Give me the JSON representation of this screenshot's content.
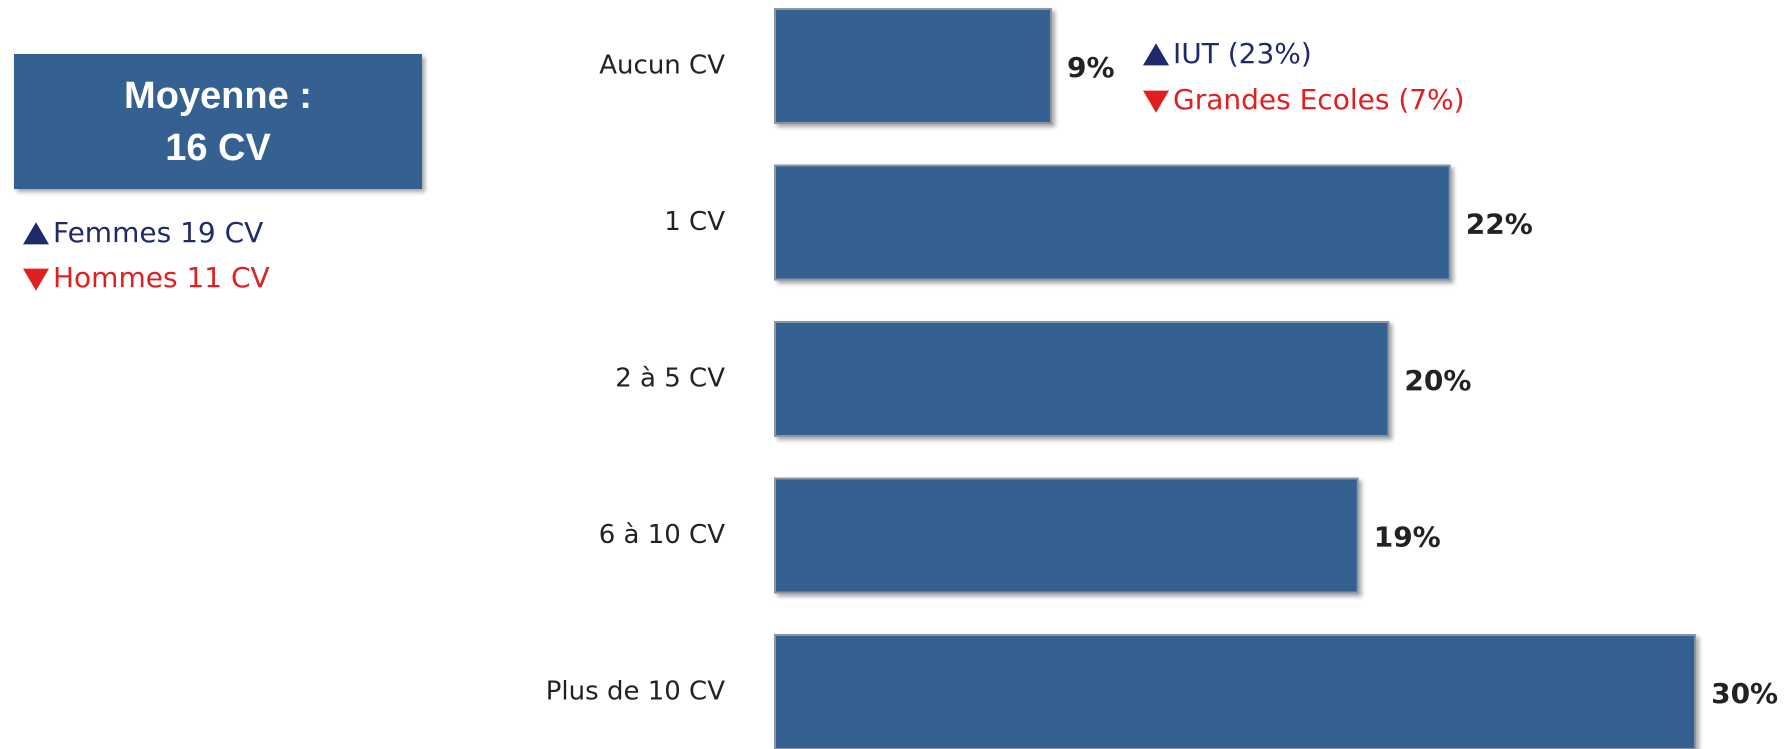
{
  "chart_data": {
    "type": "bar",
    "orientation": "horizontal",
    "categories": [
      "Aucun CV",
      "1 CV",
      "2 à 5 CV",
      "6 à 10 CV",
      "Plus de 10 CV"
    ],
    "values": [
      9,
      22,
      20,
      19,
      30
    ],
    "value_labels": [
      "9%",
      "22%",
      "20%",
      "19%",
      "30%"
    ],
    "color": "#366092",
    "box": {
      "lines": [
        "Moyenne :",
        "16 CV"
      ],
      "color": "#366092"
    },
    "notes": [
      {
        "text": "Femmes 19 CV",
        "direction": "up",
        "color": "#1f2a6b"
      },
      {
        "text": "Hommes 11 CV",
        "direction": "down",
        "color": "#e02020"
      }
    ],
    "bar_notes": [
      {
        "text": "IUT (23%)",
        "direction": "up",
        "color": "#1f2a6b"
      },
      {
        "text": "Grandes Ecoles (7%)",
        "direction": "down",
        "color": "#e02020"
      }
    ]
  }
}
